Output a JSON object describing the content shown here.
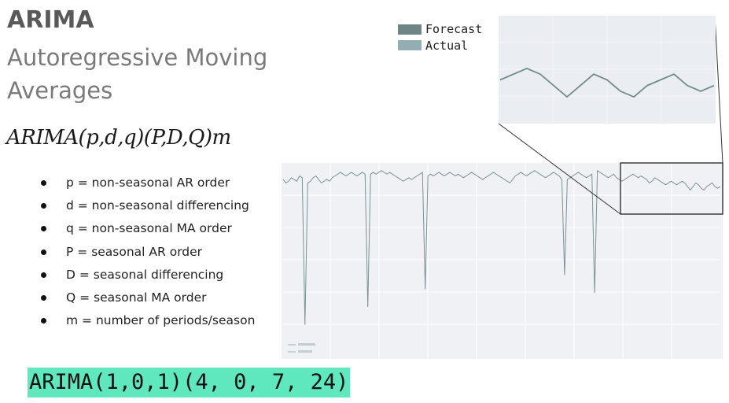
{
  "slide": {
    "title": "ARIMA",
    "subtitle": "Autoregressive Moving Averages",
    "formula": "ARIMA(p,d,q)(P,D,Q)m",
    "params": [
      "p = non-seasonal AR order",
      "d = non-seasonal differencing",
      "q = non-seasonal MA order",
      "P = seasonal AR order",
      "D = seasonal differencing",
      "Q = seasonal MA order",
      "m = number of periods/season"
    ],
    "example": "ARIMA(1,0,1)(4, 0, 7, 24)"
  },
  "chart_data": {
    "type": "line",
    "title": "",
    "xlabel": "",
    "ylabel": "",
    "grid": true,
    "legend": "top-left of zoom panel",
    "series": [
      {
        "name": "Forecast",
        "color": "#6e8586",
        "values": [
          0.92,
          0.9,
          0.91,
          0.93,
          0.92,
          0.91,
          0.94,
          0.93,
          0.92,
          0.9,
          0.91,
          0.93,
          0.94,
          0.92,
          0.9,
          0.91,
          0.92,
          0.91,
          0.93,
          0.94,
          0.95,
          0.96,
          0.95,
          0.94,
          0.95,
          0.96,
          0.95,
          0.94,
          0.95,
          0.96,
          0.95,
          0.94,
          0.95,
          0.96,
          0.95,
          0.96,
          0.97,
          0.96,
          0.95,
          0.96,
          0.95,
          0.94,
          0.93,
          0.92,
          0.91,
          0.92,
          0.93,
          0.92,
          0.93,
          0.94,
          0.95,
          0.96,
          0.95,
          0.94,
          0.95,
          0.94,
          0.95,
          0.96,
          0.95,
          0.94,
          0.95,
          0.96,
          0.95,
          0.94,
          0.95,
          0.94,
          0.93,
          0.94,
          0.95,
          0.96,
          0.95,
          0.94,
          0.93,
          0.92,
          0.93,
          0.94,
          0.95,
          0.96,
          0.95,
          0.94,
          0.93,
          0.92,
          0.91,
          0.9,
          0.92,
          0.94,
          0.95,
          0.96,
          0.95,
          0.94,
          0.95,
          0.96,
          0.97,
          0.96,
          0.95,
          0.94,
          0.93,
          0.94,
          0.95,
          0.96,
          0.95,
          0.94,
          0.92,
          0.91,
          0.92,
          0.93,
          0.94,
          0.95,
          0.96,
          0.95,
          0.94,
          0.93,
          0.94,
          0.95,
          0.96,
          0.97,
          0.96,
          0.95,
          0.94,
          0.93,
          0.94,
          0.95,
          0.93,
          0.92,
          0.91,
          0.92,
          0.93,
          0.94,
          0.95,
          0.94,
          0.93,
          0.94,
          0.93,
          0.92,
          0.9,
          0.91,
          0.93,
          0.92,
          0.91,
          0.9,
          0.89,
          0.9,
          0.91,
          0.9,
          0.89,
          0.9,
          0.91,
          0.9,
          0.88,
          0.86,
          0.88,
          0.9,
          0.89,
          0.87,
          0.86,
          0.88,
          0.89,
          0.9,
          0.88,
          0.87,
          0.88
        ]
      },
      {
        "name": "Actual",
        "color": "#93aeb3",
        "values": [
          0.92,
          0.9,
          0.91,
          0.93,
          0.92,
          0.91,
          0.94,
          0.93,
          0.92,
          0.9,
          0.91,
          0.93,
          0.94,
          0.92,
          0.9,
          0.91,
          0.92,
          0.91,
          0.93,
          0.94,
          0.95,
          0.96,
          0.95,
          0.94,
          0.95,
          0.96,
          0.95,
          0.94,
          0.95,
          0.96,
          0.95,
          0.94,
          0.95,
          0.96,
          0.95,
          0.96,
          0.97,
          0.96,
          0.95,
          0.96,
          0.95,
          0.94,
          0.93,
          0.92,
          0.91,
          0.92,
          0.93,
          0.92,
          0.93,
          0.94,
          0.95,
          0.96,
          0.95,
          0.94,
          0.95,
          0.94,
          0.95,
          0.96,
          0.95,
          0.94,
          0.95,
          0.96,
          0.95,
          0.94,
          0.95,
          0.94,
          0.93,
          0.94,
          0.95,
          0.96,
          0.95,
          0.94,
          0.93,
          0.92,
          0.93,
          0.94,
          0.95,
          0.96,
          0.95,
          0.94,
          0.93,
          0.92,
          0.91,
          0.9,
          0.92,
          0.94,
          0.95,
          0.96,
          0.95,
          0.94,
          0.95,
          0.96,
          0.97,
          0.96,
          0.95,
          0.94,
          0.93,
          0.94,
          0.95,
          0.96,
          0.95,
          0.94,
          0.92,
          0.91,
          0.92,
          0.93,
          0.94,
          0.95,
          0.96,
          0.95,
          0.94,
          0.93,
          0.94,
          0.95,
          0.96,
          0.97,
          0.96,
          0.95,
          0.94,
          0.93,
          0.94,
          0.95,
          0.93,
          0.92,
          0.91,
          0.92,
          0.93,
          0.94,
          0.95,
          0.94,
          0.93,
          0.94,
          0.93,
          0.92,
          0.9,
          0.91,
          0.93,
          0.92,
          0.91,
          0.9,
          0.89,
          0.9,
          0.91,
          0.9,
          0.89,
          0.9,
          0.91,
          0.9,
          0.88,
          0.86,
          0.88,
          0.9,
          0.89,
          0.87,
          0.86,
          0.88,
          0.89,
          0.9,
          0.88,
          0.87,
          0.88
        ]
      }
    ],
    "spikes": [
      {
        "index": 8,
        "value": 0.1
      },
      {
        "index": 31,
        "value": 0.2
      },
      {
        "index": 52,
        "value": 0.3
      },
      {
        "index": 103,
        "value": 0.38
      },
      {
        "index": 114,
        "value": 0.28
      }
    ],
    "zoom_start_index": 144
  }
}
